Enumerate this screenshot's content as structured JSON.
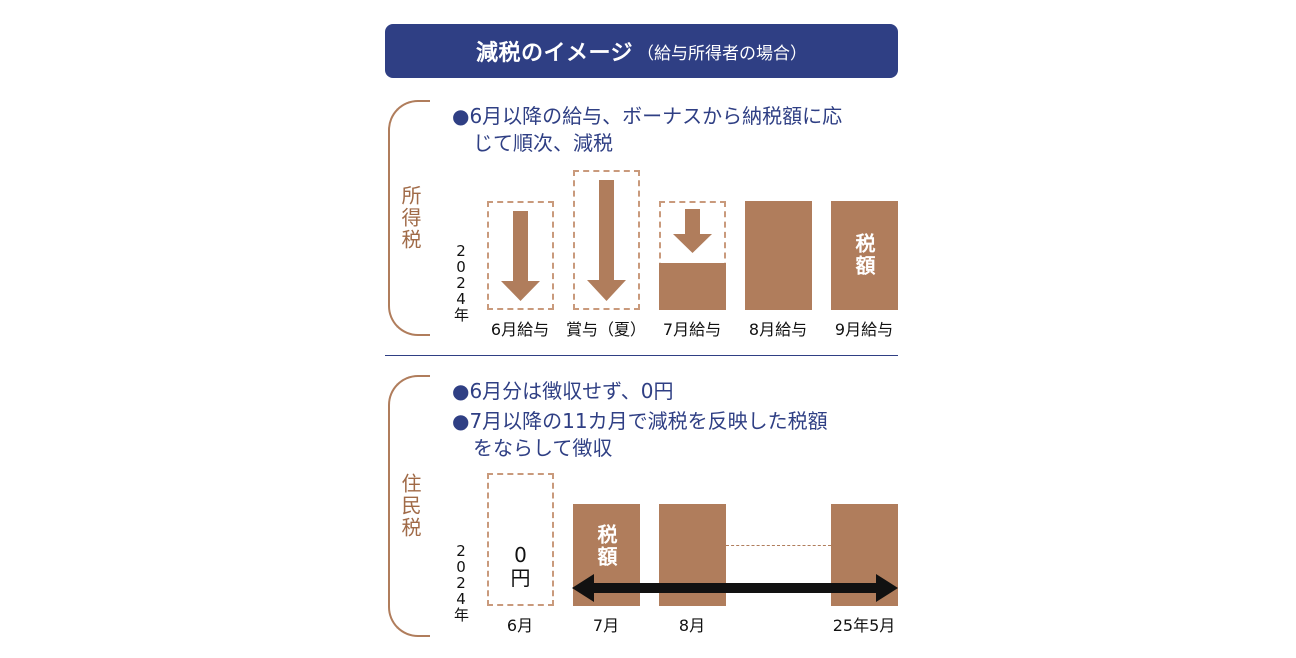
{
  "title": {
    "main": "減税のイメージ",
    "sub": "（給与所得者の場合）"
  },
  "income_tax": {
    "label": "所得税",
    "bullet_line1": "●6月以降の給与、ボーナスから納税額に応",
    "bullet_line2": "じて順次、減税",
    "year": [
      "2",
      "0",
      "2",
      "4",
      "年"
    ],
    "columns": [
      "6月給与",
      "賞与（夏）",
      "7月給与",
      "8月給与",
      "9月給与"
    ],
    "bar_text": "税額"
  },
  "resident_tax": {
    "label": "住民税",
    "bullet_line1": "●6月分は徴収せず、0円",
    "bullet_line2": "●7月以降の11カ月で減税を反映した税額",
    "bullet_line3": "をならして徴収",
    "year": [
      "2",
      "0",
      "2",
      "4",
      "年"
    ],
    "columns": [
      "6月",
      "7月",
      "8月",
      "25年5月"
    ],
    "zero_value": "0",
    "zero_unit": "円",
    "bar_text": "税額"
  },
  "colors": {
    "navy": "#2f3f84",
    "brown": "#b07d5c",
    "dash": "#c99a7c"
  }
}
